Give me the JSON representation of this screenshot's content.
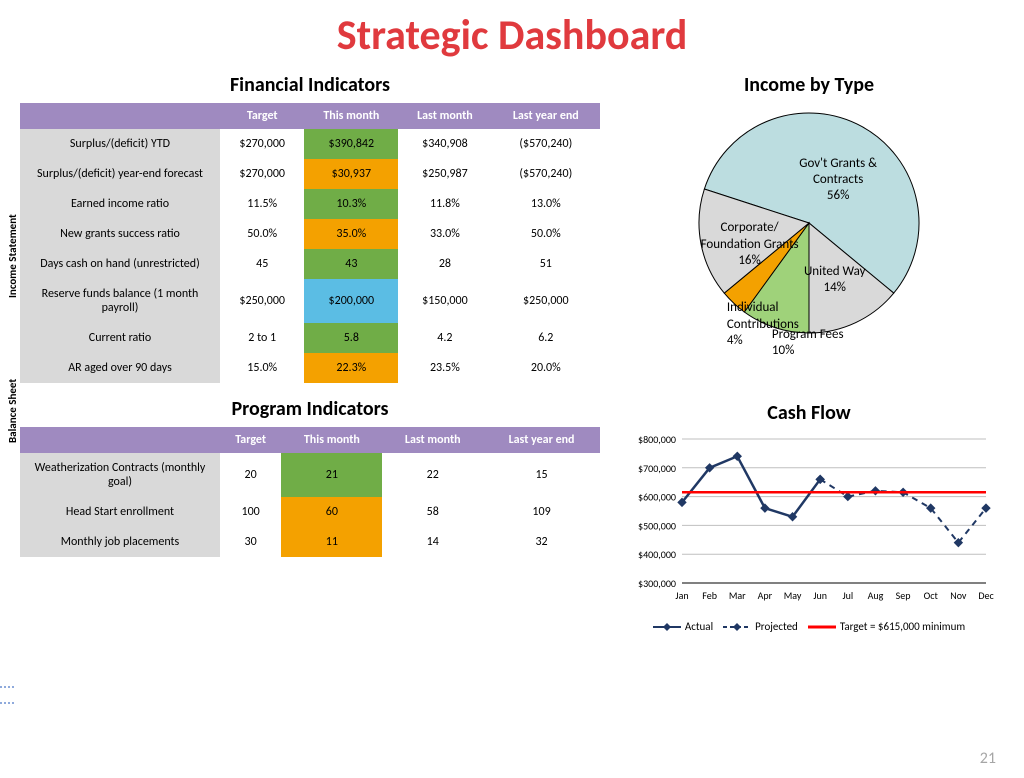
{
  "title": "Strategic Dashboard",
  "page_number": "21",
  "colors": {
    "title": "#e03a3e",
    "header_bg": "#9f8ac0",
    "header_text": "#ffffff",
    "row_label_bg": "#d9d9d9",
    "green": "#70ad47",
    "orange": "#f4a100",
    "blue": "#5bbde4"
  },
  "financial": {
    "title": "Financial Indicators",
    "side_labels": [
      "Income Statement",
      "Balance Sheet"
    ],
    "columns": [
      "",
      "Target",
      "This month",
      "Last month",
      "Last year end"
    ],
    "rows": [
      {
        "label": "Surplus/(deficit) YTD",
        "target": "$270,000",
        "this_month": "$390,842",
        "this_month_style": "green",
        "last_month": "$340,908",
        "last_year": "($570,240)",
        "group": 0
      },
      {
        "label": "Surplus/(deficit) year-end forecast",
        "target": "$270,000",
        "this_month": "$30,937",
        "this_month_style": "orange",
        "last_month": "$250,987",
        "last_year": "($570,240)",
        "group": 0
      },
      {
        "label": "Earned income ratio",
        "target": "11.5%",
        "this_month": "10.3%",
        "this_month_style": "green",
        "last_month": "11.8%",
        "last_year": "13.0%",
        "group": 0
      },
      {
        "label": "New grants success ratio",
        "target": "50.0%",
        "this_month": "35.0%",
        "this_month_style": "orange",
        "last_month": "33.0%",
        "last_year": "50.0%",
        "group": 0
      },
      {
        "label": "Days cash on hand (unrestricted)",
        "target": "45",
        "this_month": "43",
        "this_month_style": "green",
        "last_month": "28",
        "last_year": "51",
        "group": 1
      },
      {
        "label": "Reserve funds balance (1 month payroll)",
        "target": "$250,000",
        "this_month": "$200,000",
        "this_month_style": "blue",
        "last_month": "$150,000",
        "last_year": "$250,000",
        "group": 1
      },
      {
        "label": "Current ratio",
        "target": "2 to 1",
        "this_month": "5.8",
        "this_month_style": "green",
        "last_month": "4.2",
        "last_year": "6.2",
        "group": 1
      },
      {
        "label": "AR aged over 90 days",
        "target": "15.0%",
        "this_month": "22.3%",
        "this_month_style": "orange",
        "last_month": "23.5%",
        "last_year": "20.0%",
        "group": 1
      }
    ]
  },
  "program": {
    "title": "Program Indicators",
    "columns": [
      "",
      "Target",
      "This month",
      "Last month",
      "Last year end"
    ],
    "rows": [
      {
        "label": "Weatherization Contracts (monthly goal)",
        "target": "20",
        "this_month": "21",
        "this_month_style": "green",
        "last_month": "22",
        "last_year": "15"
      },
      {
        "label": "Head Start enrollment",
        "target": "100",
        "this_month": "60",
        "this_month_style": "orange",
        "last_month": "58",
        "last_year": "109"
      },
      {
        "label": "Monthly job placements",
        "target": "30",
        "this_month": "11",
        "this_month_style": "orange",
        "last_month": "14",
        "last_year": "32"
      }
    ]
  },
  "income_by_type": {
    "title": "Income by Type",
    "type": "pie",
    "slices": [
      {
        "label": "Gov't Grants & Contracts",
        "pct": 56,
        "color": "#bcdde0",
        "label_pos": "inside"
      },
      {
        "label": "United Way",
        "pct": 14,
        "color": "#d9d9d9",
        "label_pos": "inside"
      },
      {
        "label": "Program Fees",
        "pct": 10,
        "color": "#9fd27a",
        "label_pos": "outside-right"
      },
      {
        "label": "Individual Contributions",
        "pct": 4,
        "color": "#f4a100",
        "label_pos": "outside-right"
      },
      {
        "label": "Corporate/ Foundation Grants",
        "pct": 16,
        "color": "#d9d9d9",
        "label_pos": "inside"
      }
    ],
    "stroke": "#000000",
    "stroke_width": 1
  },
  "cash_flow": {
    "title": "Cash Flow",
    "type": "line",
    "months": [
      "Jan",
      "Feb",
      "Mar",
      "Apr",
      "May",
      "Jun",
      "Jul",
      "Aug",
      "Sep",
      "Oct",
      "Nov",
      "Dec"
    ],
    "ylim": [
      300000,
      800000
    ],
    "ytick_step": 100000,
    "ytick_labels": [
      "$300,000",
      "$400,000",
      "$500,000",
      "$600,000",
      "$700,000",
      "$800,000"
    ],
    "grid_color": "#bfbfbf",
    "series": [
      {
        "name": "Actual",
        "color": "#203864",
        "marker": "diamond",
        "line_style": "solid",
        "line_width": 2.5,
        "values": [
          580000,
          700000,
          740000,
          560000,
          530000,
          660000,
          null,
          null,
          null,
          null,
          null,
          null
        ]
      },
      {
        "name": "Projected",
        "color": "#203864",
        "marker": "diamond",
        "line_style": "dashed",
        "line_width": 2,
        "values": [
          null,
          null,
          null,
          null,
          null,
          660000,
          600000,
          620000,
          615000,
          560000,
          440000,
          560000
        ]
      },
      {
        "name": "Target = $615,000 minimum",
        "color": "#ff0000",
        "line_style": "solid",
        "line_width": 2.5,
        "marker": "none",
        "values": [
          615000,
          615000,
          615000,
          615000,
          615000,
          615000,
          615000,
          615000,
          615000,
          615000,
          615000,
          615000
        ]
      }
    ],
    "legend": [
      "Actual",
      "Projected",
      "Target = $615,000 minimum"
    ]
  }
}
